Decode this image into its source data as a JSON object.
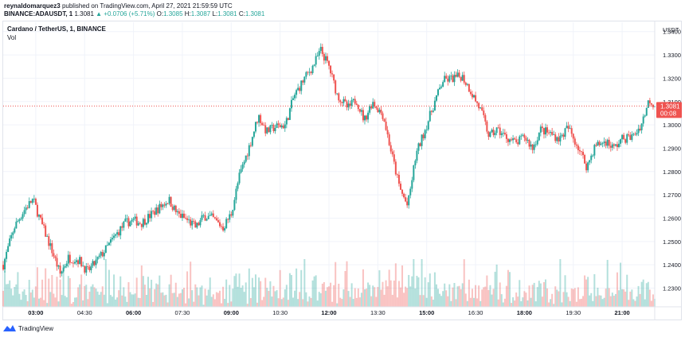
{
  "header": {
    "author": "reynaldomarquez3",
    "published": "published on TradingView.com, April 27, 2021 21:59:59 UTC",
    "symbol": "BINANCE:ADAUSDT, 1",
    "last": "1.3081",
    "change": "+0.0706 (+5.71%)",
    "o_label": "O:",
    "o": "1.3085",
    "h_label": "H:",
    "h": "1.3087",
    "l_label": "L:",
    "l": "1.3081",
    "c_label": "C:",
    "c": "1.3081"
  },
  "chart_title": "Cardano / TetherUS, 1, BINANCE",
  "vol_label": "Vol",
  "currency": "USDT",
  "price_tag": {
    "price": "1.3081",
    "countdown": "00:08"
  },
  "footer": {
    "brand": "TradingView"
  },
  "colors": {
    "up": "#26a69a",
    "down": "#ef5350",
    "tag": "#ef5350",
    "grid": "#f0f3fa"
  },
  "chart_data": {
    "type": "candlestick",
    "y_ticks": [
      "1.3400",
      "1.3300",
      "1.3200",
      "1.3100",
      "1.3000",
      "1.2900",
      "1.2800",
      "1.2700",
      "1.2600",
      "1.2500",
      "1.2400",
      "1.2300"
    ],
    "ylim": [
      1.222,
      1.344
    ],
    "x_ticks": [
      "03:00",
      "04:30",
      "06:00",
      "07:30",
      "09:00",
      "10:30",
      "12:00",
      "13:30",
      "15:00",
      "16:30",
      "18:00",
      "19:30",
      "21:00"
    ],
    "bold_x_ticks": [
      "03:00",
      "06:00",
      "09:00",
      "12:00",
      "15:00",
      "18:00",
      "21:00"
    ],
    "x_range": [
      "02:00",
      "22:00"
    ],
    "grid": true,
    "last_price": 1.3081,
    "close_path": [
      [
        "02:00",
        1.24
      ],
      [
        "02:20",
        1.256
      ],
      [
        "02:40",
        1.264
      ],
      [
        "02:55",
        1.268
      ],
      [
        "03:10",
        1.258
      ],
      [
        "03:30",
        1.246
      ],
      [
        "03:45",
        1.236
      ],
      [
        "04:00",
        1.243
      ],
      [
        "04:20",
        1.242
      ],
      [
        "04:35",
        1.237
      ],
      [
        "04:50",
        1.241
      ],
      [
        "05:10",
        1.247
      ],
      [
        "05:25",
        1.252
      ],
      [
        "05:45",
        1.258
      ],
      [
        "06:00",
        1.259
      ],
      [
        "06:15",
        1.258
      ],
      [
        "06:35",
        1.262
      ],
      [
        "06:50",
        1.265
      ],
      [
        "07:05",
        1.268
      ],
      [
        "07:20",
        1.262
      ],
      [
        "07:40",
        1.259
      ],
      [
        "07:55",
        1.256
      ],
      [
        "08:10",
        1.261
      ],
      [
        "08:25",
        1.26
      ],
      [
        "08:45",
        1.256
      ],
      [
        "09:00",
        1.262
      ],
      [
        "09:15",
        1.278
      ],
      [
        "09:35",
        1.292
      ],
      [
        "09:50",
        1.304
      ],
      [
        "10:05",
        1.297
      ],
      [
        "10:20",
        1.299
      ],
      [
        "10:40",
        1.3
      ],
      [
        "10:55",
        1.312
      ],
      [
        "11:15",
        1.32
      ],
      [
        "11:30",
        1.325
      ],
      [
        "11:45",
        1.332
      ],
      [
        "12:00",
        1.325
      ],
      [
        "12:15",
        1.313
      ],
      [
        "12:35",
        1.307
      ],
      [
        "12:50",
        1.311
      ],
      [
        "13:05",
        1.302
      ],
      [
        "13:20",
        1.31
      ],
      [
        "13:40",
        1.304
      ],
      [
        "13:55",
        1.288
      ],
      [
        "14:10",
        1.273
      ],
      [
        "14:25",
        1.265
      ],
      [
        "14:40",
        1.287
      ],
      [
        "15:00",
        1.3
      ],
      [
        "15:15",
        1.31
      ],
      [
        "15:30",
        1.319
      ],
      [
        "15:50",
        1.32
      ],
      [
        "16:05",
        1.321
      ],
      [
        "16:20",
        1.315
      ],
      [
        "16:40",
        1.306
      ],
      [
        "16:55",
        1.295
      ],
      [
        "17:10",
        1.298
      ],
      [
        "17:25",
        1.295
      ],
      [
        "17:45",
        1.292
      ],
      [
        "18:00",
        1.295
      ],
      [
        "18:15",
        1.29
      ],
      [
        "18:30",
        1.298
      ],
      [
        "18:50",
        1.296
      ],
      [
        "19:05",
        1.294
      ],
      [
        "19:20",
        1.299
      ],
      [
        "19:40",
        1.29
      ],
      [
        "19:55",
        1.282
      ],
      [
        "20:10",
        1.291
      ],
      [
        "20:30",
        1.293
      ],
      [
        "20:45",
        1.29
      ],
      [
        "21:00",
        1.294
      ],
      [
        "21:20",
        1.295
      ],
      [
        "21:35",
        1.3
      ],
      [
        "21:50",
        1.311
      ],
      [
        "22:00",
        1.3081
      ]
    ]
  }
}
